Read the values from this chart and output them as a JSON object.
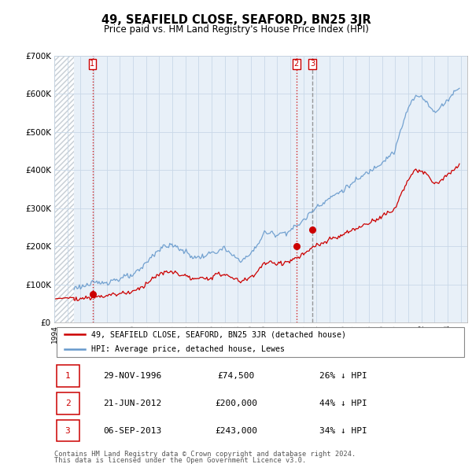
{
  "title": "49, SEAFIELD CLOSE, SEAFORD, BN25 3JR",
  "subtitle": "Price paid vs. HM Land Registry's House Price Index (HPI)",
  "legend_label_red": "49, SEAFIELD CLOSE, SEAFORD, BN25 3JR (detached house)",
  "legend_label_blue": "HPI: Average price, detached house, Lewes",
  "transactions": [
    {
      "num": 1,
      "date": "29-NOV-1996",
      "price": 74500,
      "pct": "26% ↓ HPI",
      "year_x": 1996.91
    },
    {
      "num": 2,
      "date": "21-JUN-2012",
      "price": 200000,
      "pct": "44% ↓ HPI",
      "year_x": 2012.47
    },
    {
      "num": 3,
      "date": "06-SEP-2013",
      "price": 243000,
      "pct": "34% ↓ HPI",
      "year_x": 2013.68
    }
  ],
  "ylim": [
    0,
    700000
  ],
  "yticks": [
    0,
    100000,
    200000,
    300000,
    400000,
    500000,
    600000,
    700000
  ],
  "ytick_labels": [
    "£0",
    "£100K",
    "£200K",
    "£300K",
    "£400K",
    "£500K",
    "£600K",
    "£700K"
  ],
  "xlim_start": 1994.0,
  "xlim_end": 2025.5,
  "hpi_data_start": 1995.5,
  "grid_color": "#c8d8e8",
  "chart_bg_color": "#e8f0f8",
  "background_color": "#ffffff",
  "red_color": "#cc0000",
  "blue_color": "#6699cc",
  "hatch_color": "#c0c8d0",
  "footnote1": "Contains HM Land Registry data © Crown copyright and database right 2024.",
  "footnote2": "This data is licensed under the Open Government Licence v3.0."
}
